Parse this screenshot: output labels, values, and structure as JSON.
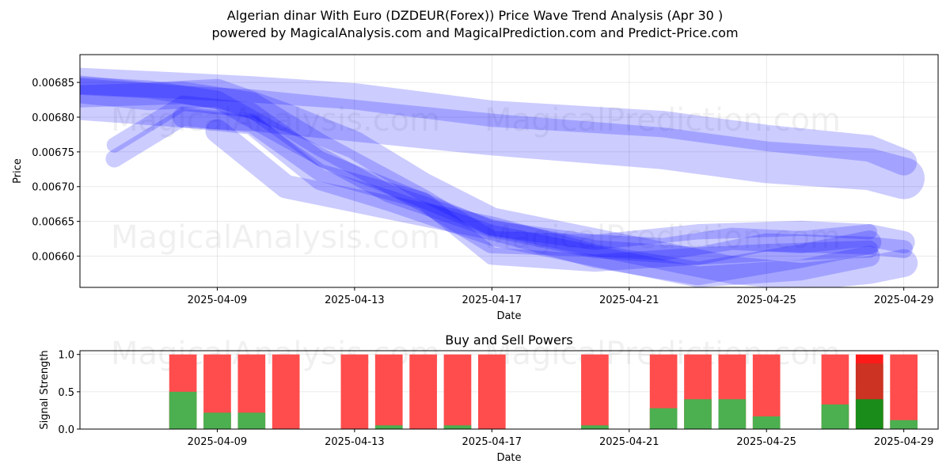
{
  "title_line1": "Algerian dinar With Euro (DZDEUR(Forex)) Price Wave Trend Analysis (Apr 30 )",
  "title_line2": "powered by MagicalAnalysis.com and MagicalPrediction.com and Predict-Price.com",
  "watermarks": [
    "MagicalAnalysis.com",
    "MagicalPrediction.com"
  ],
  "chart_data": [
    {
      "type": "area",
      "title": "",
      "xlabel": "Date",
      "ylabel": "Price",
      "xlim": [
        "2025-04-05",
        "2025-04-30"
      ],
      "ylim": [
        0.006555,
        0.00689
      ],
      "x_ticks": [
        "2025-04-09",
        "2025-04-13",
        "2025-04-17",
        "2025-04-21",
        "2025-04-25",
        "2025-04-29"
      ],
      "y_ticks": [
        "0.00660",
        "0.00665",
        "0.00670",
        "0.00675",
        "0.00680",
        "0.00685"
      ],
      "grid": true,
      "color": "#0000ff",
      "series": [
        {
          "x": [
            "2025-04-05",
            "2025-04-08",
            "2025-04-10",
            "2025-04-13",
            "2025-04-17",
            "2025-04-22",
            "2025-04-25",
            "2025-04-28",
            "2025-04-29"
          ],
          "y": [
            0.006852,
            0.006845,
            0.00684,
            0.00683,
            0.006805,
            0.00679,
            0.00677,
            0.006755,
            0.006735
          ],
          "width": 3.8e-05
        },
        {
          "x": [
            "2025-04-05",
            "2025-04-08",
            "2025-04-10",
            "2025-04-13",
            "2025-04-17",
            "2025-04-22",
            "2025-04-25",
            "2025-04-28",
            "2025-04-29"
          ],
          "y": [
            0.006826,
            0.006815,
            0.00681,
            0.006795,
            0.006775,
            0.006755,
            0.006735,
            0.006725,
            0.006712
          ],
          "width": 6e-05
        },
        {
          "x": [
            "2025-04-05",
            "2025-04-07",
            "2025-04-09",
            "2025-04-11",
            "2025-04-13",
            "2025-04-15",
            "2025-04-17",
            "2025-04-20",
            "2025-04-22",
            "2025-04-24",
            "2025-04-26",
            "2025-04-28",
            "2025-04-29"
          ],
          "y": [
            0.00684,
            0.00683,
            0.006835,
            0.0068,
            0.00676,
            0.0067,
            0.00665,
            0.00662,
            0.0066,
            0.00658,
            0.00657,
            0.00658,
            0.00659
          ],
          "width": 4e-05
        },
        {
          "x": [
            "2025-04-05",
            "2025-04-08",
            "2025-04-10",
            "2025-04-12",
            "2025-04-15",
            "2025-04-17",
            "2025-04-20",
            "2025-04-22",
            "2025-04-24",
            "2025-04-26",
            "2025-04-28",
            "2025-04-29"
          ],
          "y": [
            0.00683,
            0.006835,
            0.00682,
            0.00676,
            0.00668,
            0.00662,
            0.006615,
            0.00661,
            0.006625,
            0.00662,
            0.00663,
            0.00662
          ],
          "width": 3.2e-05
        },
        {
          "x": [
            "2025-04-05",
            "2025-04-07",
            "2025-04-09",
            "2025-04-11",
            "2025-04-14",
            "2025-04-17",
            "2025-04-20",
            "2025-04-23",
            "2025-04-25",
            "2025-04-28",
            "2025-04-29"
          ],
          "y": [
            0.006845,
            0.00684,
            0.006825,
            0.00677,
            0.00669,
            0.00664,
            0.00661,
            0.0066,
            0.00662,
            0.006615,
            0.00661
          ],
          "width": 2.6e-05
        },
        {
          "x": [
            "2025-04-06",
            "2025-04-08",
            "2025-04-10",
            "2025-04-12",
            "2025-04-15",
            "2025-04-17",
            "2025-04-20",
            "2025-04-23",
            "2025-04-25",
            "2025-04-28"
          ],
          "y": [
            0.00674,
            0.0068,
            0.00679,
            0.00672,
            0.00668,
            0.0066,
            0.00659,
            0.0066,
            0.006605,
            0.00661
          ],
          "width": 2.5e-05
        },
        {
          "x": [
            "2025-04-06",
            "2025-04-08",
            "2025-04-10",
            "2025-04-12",
            "2025-04-14",
            "2025-04-17",
            "2025-04-20",
            "2025-04-23",
            "2025-04-26",
            "2025-04-28"
          ],
          "y": [
            0.00676,
            0.00682,
            0.00681,
            0.00674,
            0.0067,
            0.00664,
            0.00662,
            0.006635,
            0.00664,
            0.006635
          ],
          "width": 2.2e-05
        },
        {
          "x": [
            "2025-04-08",
            "2025-04-10",
            "2025-04-12",
            "2025-04-14",
            "2025-04-17",
            "2025-04-20",
            "2025-04-23",
            "2025-04-26",
            "2025-04-28"
          ],
          "y": [
            0.0068,
            0.00679,
            0.00671,
            0.00668,
            0.00663,
            0.0066,
            0.00657,
            0.00658,
            0.0066
          ],
          "width": 3e-05
        },
        {
          "x": [
            "2025-04-09",
            "2025-04-11",
            "2025-04-14",
            "2025-04-17",
            "2025-04-20",
            "2025-04-23",
            "2025-04-26",
            "2025-04-28"
          ],
          "y": [
            0.00678,
            0.0067,
            0.00667,
            0.00664,
            0.0066,
            0.006575,
            0.0066,
            0.00662
          ],
          "width": 3.4e-05
        }
      ]
    },
    {
      "type": "bar",
      "title": "Buy and Sell Powers",
      "xlabel": "Date",
      "ylabel": "Signal Strength",
      "xlim": [
        "2025-04-05",
        "2025-04-30"
      ],
      "ylim": [
        0,
        1.05
      ],
      "x_ticks": [
        "2025-04-09",
        "2025-04-13",
        "2025-04-17",
        "2025-04-21",
        "2025-04-25",
        "2025-04-29"
      ],
      "y_ticks": [
        "0.0",
        "0.5",
        "1.0"
      ],
      "grid": true,
      "colors": {
        "buy": "#4caf50",
        "sell": "#ff4d4d",
        "buy_highlight": "#1a8c1a",
        "sell_highlight": "#ff1a1a",
        "overlap": "#cc3322"
      },
      "series": [
        {
          "name": "buy",
          "x": [
            "2025-04-08",
            "2025-04-09",
            "2025-04-10",
            "2025-04-11",
            "2025-04-13",
            "2025-04-14",
            "2025-04-15",
            "2025-04-16",
            "2025-04-17",
            "2025-04-20",
            "2025-04-22",
            "2025-04-23",
            "2025-04-24",
            "2025-04-25",
            "2025-04-27",
            "2025-04-28",
            "2025-04-29"
          ],
          "values": [
            0.5,
            0.22,
            0.22,
            0.0,
            0.0,
            0.05,
            0.0,
            0.05,
            0.0,
            0.05,
            0.28,
            0.4,
            0.4,
            0.17,
            0.33,
            0.4,
            0.12
          ]
        },
        {
          "name": "sell",
          "x": [
            "2025-04-08",
            "2025-04-09",
            "2025-04-10",
            "2025-04-11",
            "2025-04-13",
            "2025-04-14",
            "2025-04-15",
            "2025-04-16",
            "2025-04-17",
            "2025-04-20",
            "2025-04-22",
            "2025-04-23",
            "2025-04-24",
            "2025-04-25",
            "2025-04-27",
            "2025-04-28",
            "2025-04-29"
          ],
          "values": [
            1.0,
            1.0,
            1.0,
            1.0,
            1.0,
            1.0,
            1.0,
            1.0,
            1.0,
            1.0,
            1.0,
            1.0,
            1.0,
            1.0,
            1.0,
            1.0,
            1.0
          ]
        }
      ],
      "highlight_x": "2025-04-28",
      "highlight_overlap": 0.88
    }
  ]
}
